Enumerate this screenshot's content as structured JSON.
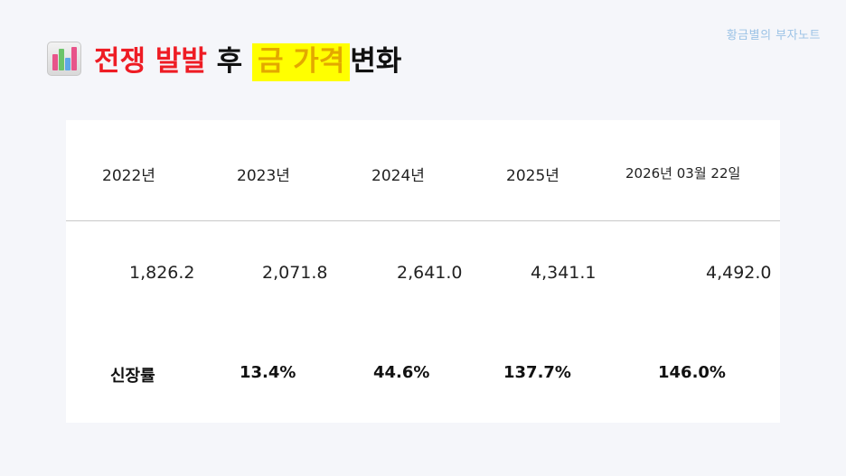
{
  "watermark": "황금별의 부자노트",
  "title": {
    "part1": "전쟁 발발",
    "part2": "후",
    "part3": "금 가격",
    "part4": "변화"
  },
  "table": {
    "years": [
      "2022년",
      "2023년",
      "2024년",
      "2025년",
      "2026년 03월 22일"
    ],
    "values": [
      "1,826.2",
      "2,071.8",
      "2,641.0",
      "4,341.1",
      "4,492.0"
    ],
    "growth_label": "신장률",
    "growth": [
      "13.4%",
      "44.6%",
      "137.7%",
      "146.0%"
    ]
  }
}
